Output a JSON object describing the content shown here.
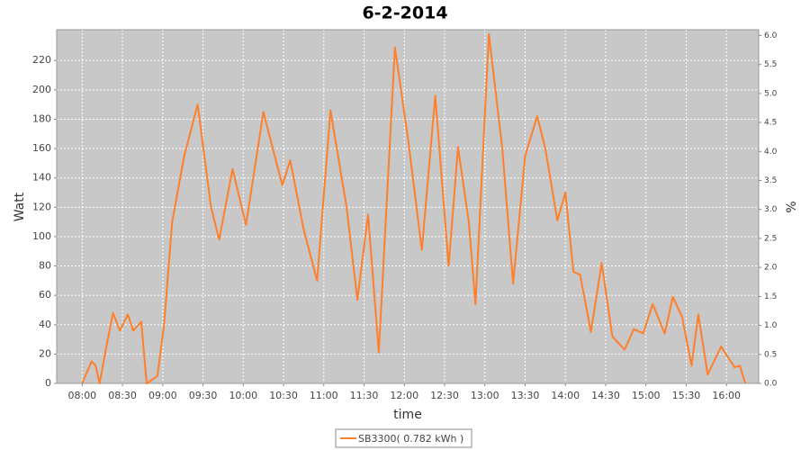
{
  "chart_data": {
    "type": "line",
    "title": "6-2-2014",
    "x_label": "time",
    "y_label": "Watt",
    "y2_label": "%",
    "x": [
      "08:00",
      "08:07",
      "08:10",
      "08:13",
      "08:18",
      "08:23",
      "08:28",
      "08:34",
      "08:38",
      "08:44",
      "08:48",
      "08:56",
      "09:01",
      "09:07",
      "09:16",
      "09:26",
      "09:36",
      "09:42",
      "09:52",
      "10:02",
      "10:15",
      "10:29",
      "10:35",
      "10:45",
      "10:55",
      "11:05",
      "11:17",
      "11:25",
      "11:33",
      "11:41",
      "11:53",
      "12:03",
      "12:13",
      "12:23",
      "12:33",
      "12:40",
      "12:48",
      "12:53",
      "13:03",
      "13:13",
      "13:21",
      "13:30",
      "13:39",
      "13:45",
      "13:54",
      "14:00",
      "14:06",
      "14:11",
      "14:19",
      "14:27",
      "14:35",
      "14:44",
      "14:51",
      "14:58",
      "15:05",
      "15:14",
      "15:20",
      "15:27",
      "15:34",
      "15:39",
      "15:46",
      "15:56",
      "16:06",
      "16:10",
      "16:14"
    ],
    "series": [
      {
        "name": "SB3300( 0.782 kWh )",
        "color": "#ff7f2a",
        "values": [
          0,
          15,
          12,
          0,
          25,
          48,
          36,
          47,
          36,
          42,
          0,
          5,
          40,
          110,
          155,
          190,
          120,
          98,
          146,
          108,
          185,
          135,
          152,
          105,
          70,
          186,
          120,
          57,
          115,
          21,
          229,
          165,
          91,
          196,
          80,
          161,
          110,
          54,
          238,
          160,
          68,
          155,
          182,
          160,
          111,
          130,
          76,
          74,
          35,
          82,
          32,
          23,
          37,
          34,
          54,
          34,
          59,
          45,
          12,
          47,
          6,
          25,
          11,
          12,
          0
        ]
      }
    ],
    "xlim": [
      "07:41",
      "16:24"
    ],
    "xticks": [
      "08:00",
      "08:30",
      "09:00",
      "09:30",
      "10:00",
      "10:30",
      "11:00",
      "11:30",
      "12:00",
      "12:30",
      "13:00",
      "13:30",
      "14:00",
      "14:30",
      "15:00",
      "15:30",
      "16:00"
    ],
    "ylim": [
      0,
      241
    ],
    "yticks": [
      0,
      20,
      40,
      60,
      80,
      100,
      120,
      140,
      160,
      180,
      200,
      220
    ],
    "y2lim": [
      0,
      6.1
    ],
    "y2ticks": [
      {
        "value": 0,
        "label": "0.0"
      },
      0.5,
      {
        "value": 1,
        "label": "1.0"
      },
      1.5,
      {
        "value": 2,
        "label": "2.0"
      },
      2.5,
      {
        "value": 3,
        "label": "3.0"
      },
      3.5,
      {
        "value": 4,
        "label": "4.0"
      },
      4.5,
      {
        "value": 5,
        "label": "5.0"
      },
      5.5,
      {
        "value": 6,
        "label": "6.0"
      }
    ],
    "grid": true,
    "legend": "bottom"
  }
}
